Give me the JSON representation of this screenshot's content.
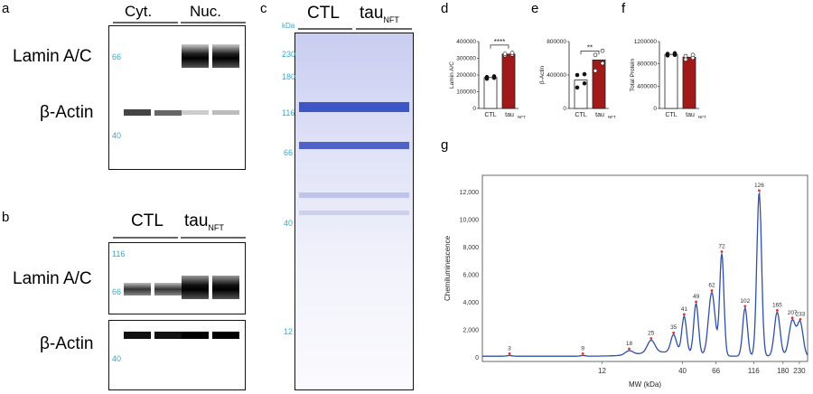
{
  "panels": {
    "a": {
      "label": "a",
      "groups": [
        "Cyt.",
        "Nuc."
      ],
      "rows": [
        "Lamin A/C",
        "β-Actin"
      ],
      "mw": [
        "66",
        "40"
      ]
    },
    "b": {
      "label": "b",
      "groups": [
        "CTL",
        "tau",
        "NFT"
      ],
      "rows": [
        "Lamin A/C",
        "β-Actin"
      ],
      "mw_top": [
        "116",
        "66"
      ],
      "mw_bottom": [
        "40"
      ]
    },
    "c": {
      "label": "c",
      "kda": "kDa",
      "groups": [
        "CTL",
        "tau",
        "NFT"
      ],
      "mw": [
        "230",
        "180",
        "116",
        "66",
        "40",
        "12"
      ]
    },
    "d": {
      "label": "d",
      "ylabel": "Lamin A/C",
      "sig": "****",
      "yticks": [
        "400000",
        "300000",
        "200000",
        "100000",
        "0"
      ],
      "xlabels": [
        "CTL",
        "tau",
        "NFT"
      ]
    },
    "e": {
      "label": "e",
      "ylabel": "β-Actin",
      "sig": "**",
      "yticks": [
        "800000",
        "400000",
        "0"
      ],
      "xlabels": [
        "CTL",
        "tau",
        "NFT"
      ]
    },
    "f": {
      "label": "f",
      "ylabel": "Total Protein",
      "yticks": [
        "1200000",
        "800000",
        "400000",
        "0"
      ],
      "xlabels": [
        "CTL",
        "tau",
        "NFT"
      ]
    },
    "g": {
      "label": "g"
    }
  },
  "chart_data": [
    {
      "type": "bar",
      "panel": "d",
      "categories": [
        "CTL",
        "tauNFT"
      ],
      "values": [
        185000,
        325000
      ],
      "points": [
        [
          178000,
          183000,
          188000,
          192000
        ],
        [
          318000,
          322000,
          327000,
          332000
        ]
      ],
      "colors": [
        "#ffffff",
        "#a01a1a"
      ],
      "ylabel": "Lamin A/C",
      "ylim": [
        0,
        400000
      ]
    },
    {
      "type": "bar",
      "panel": "e",
      "categories": [
        "CTL",
        "tauNFT"
      ],
      "values": [
        340000,
        580000
      ],
      "points": [
        [
          250000,
          300000,
          400000,
          410000
        ],
        [
          450000,
          540000,
          640000,
          690000
        ]
      ],
      "colors": [
        "#ffffff",
        "#a01a1a"
      ],
      "ylabel": "β-Actin",
      "ylim": [
        0,
        800000
      ]
    },
    {
      "type": "bar",
      "panel": "f",
      "categories": [
        "CTL",
        "tauNFT"
      ],
      "values": [
        970000,
        920000
      ],
      "points": [
        [
          950000,
          960000,
          980000,
          990000
        ],
        [
          880000,
          910000,
          940000,
          960000
        ]
      ],
      "colors": [
        "#ffffff",
        "#a01a1a"
      ],
      "ylabel": "Total Protein",
      "ylim": [
        0,
        1200000
      ]
    },
    {
      "type": "line",
      "panel": "g",
      "xlabel": "MW (kDa)",
      "ylabel": "Chemiluminescence",
      "ylim": [
        0,
        13000
      ],
      "yticks": [
        "0",
        "2,000",
        "4,000",
        "6,000",
        "8,000",
        "10,000",
        "12,000"
      ],
      "xticks": [
        "12",
        "40",
        "66",
        "116",
        "180",
        "230"
      ],
      "peaks": [
        {
          "label": "3",
          "x": 3,
          "y": 150
        },
        {
          "label": "9",
          "x": 9,
          "y": 150
        },
        {
          "label": "18",
          "x": 18,
          "y": 400
        },
        {
          "label": "25",
          "x": 25,
          "y": 1000
        },
        {
          "label": "35",
          "x": 35,
          "y": 1400
        },
        {
          "label": "41",
          "x": 41,
          "y": 2800
        },
        {
          "label": "49",
          "x": 49,
          "y": 3800
        },
        {
          "label": "62",
          "x": 62,
          "y": 4700
        },
        {
          "label": "72",
          "x": 72,
          "y": 7500
        },
        {
          "label": "102",
          "x": 102,
          "y": 3600
        },
        {
          "label": "126",
          "x": 126,
          "y": 12000
        },
        {
          "label": "165",
          "x": 165,
          "y": 3300
        },
        {
          "label": "207",
          "x": 207,
          "y": 2700
        },
        {
          "label": "233",
          "x": 233,
          "y": 2500
        }
      ],
      "color": "#2f4fa8"
    }
  ]
}
